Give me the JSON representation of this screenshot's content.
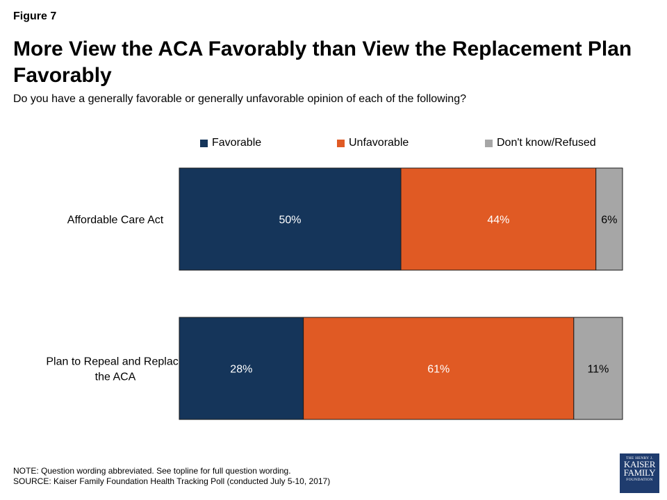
{
  "header": {
    "figure_label": "Figure 7",
    "title": "More View the ACA Favorably than View the Replacement Plan Favorably",
    "subtitle": "Do you have a generally favorable or generally unfavorable opinion of each of the following?"
  },
  "footer": {
    "note": "NOTE: Question wording abbreviated. See topline for full question wording.",
    "source": "SOURCE: Kaiser Family Foundation Health Tracking Poll (conducted July 5-10, 2017)"
  },
  "logo": {
    "line1": "THE HENRY J.",
    "line2": "KAISER",
    "line3": "FAMILY",
    "line4": "FOUNDATION"
  },
  "colors": {
    "favorable": "#15355a",
    "unfavorable": "#e05a24",
    "dont_know": "#a6a6a6"
  },
  "chart_data": {
    "type": "bar",
    "orientation": "horizontal",
    "stacked": true,
    "categories": [
      "Affordable Care Act",
      "Plan to Repeal and Replace the ACA"
    ],
    "series": [
      {
        "name": "Favorable",
        "values": [
          50,
          28
        ],
        "labels": [
          "50%",
          "28%"
        ]
      },
      {
        "name": "Unfavorable",
        "values": [
          44,
          61
        ],
        "labels": [
          "44%",
          "61%"
        ]
      },
      {
        "name": "Don't know/Refused",
        "values": [
          6,
          11
        ],
        "labels": [
          "6%",
          "11%"
        ]
      }
    ],
    "xlim": [
      0,
      100
    ],
    "legend_position": "top",
    "grid": false
  }
}
